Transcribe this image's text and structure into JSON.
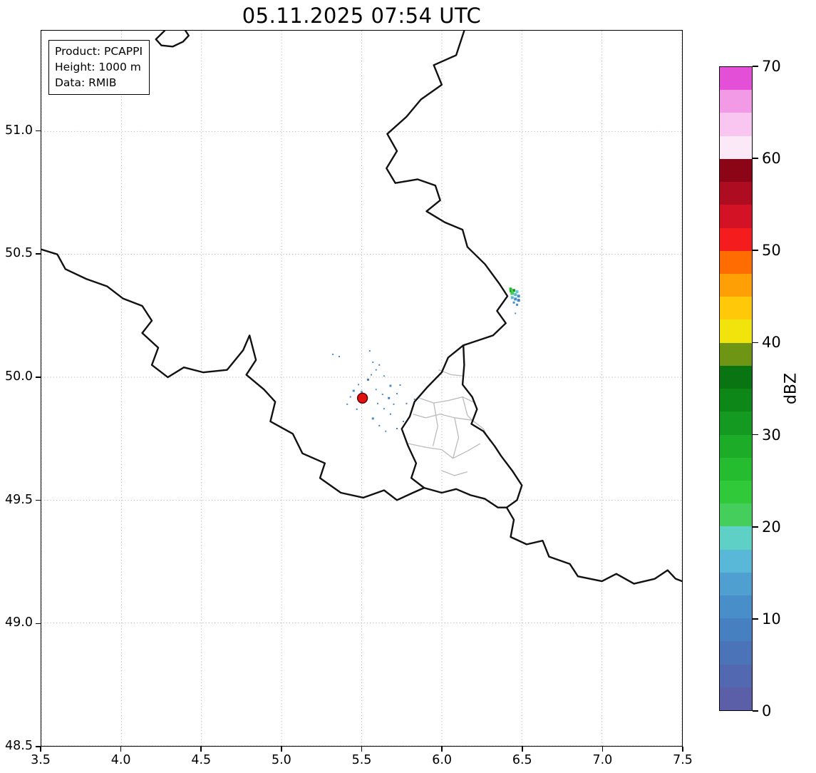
{
  "chart_data": {
    "type": "heatmap",
    "title": "05.11.2025 07:54 UTC",
    "annotation_box": {
      "product": "Product: PCAPPI",
      "height": "Height: 1000 m",
      "source": "Data: RMIB"
    },
    "x_axis": {
      "ticks": [
        "3.5",
        "4.0",
        "4.5",
        "5.0",
        "5.5",
        "6.0",
        "6.5",
        "7.0",
        "7.5"
      ],
      "range": [
        3.5,
        7.5
      ]
    },
    "y_axis": {
      "ticks": [
        "48.5",
        "49.0",
        "49.5",
        "50.0",
        "50.5",
        "51.0"
      ],
      "range": [
        48.5,
        51.41
      ]
    },
    "grid": {
      "style": "dotted",
      "color": "#b5b5b5"
    },
    "colorbar": {
      "label": "dBZ",
      "ticks": [
        "0",
        "10",
        "20",
        "30",
        "40",
        "50",
        "60",
        "70"
      ],
      "range": [
        0,
        70
      ],
      "step": 2.5,
      "colors_bottom_to_top": [
        "#5A5FA8",
        "#5268B0",
        "#4B73B8",
        "#4680C0",
        "#488EC8",
        "#4FA0D0",
        "#59B8D8",
        "#5ED0C6",
        "#46CE5C",
        "#30C93A",
        "#26BC30",
        "#1CAC28",
        "#149A20",
        "#0E8719",
        "#087412",
        "#6E9614",
        "#F0E40C",
        "#FFC90A",
        "#FF9F06",
        "#FF6C02",
        "#F51C1E",
        "#D41226",
        "#AE0C20",
        "#8C0516",
        "#FBE9F8",
        "#F8C6F0",
        "#F29AE6",
        "#E44FD8"
      ]
    },
    "radar_site": {
      "lon": 5.505,
      "lat": 49.915,
      "marker_color": "#E31212",
      "edge_color": "#550000",
      "radius_px": 7
    },
    "echo_points": [
      {
        "lon": 5.45,
        "lat": 49.945,
        "dbz": 10,
        "px": 3
      },
      {
        "lon": 5.43,
        "lat": 49.92,
        "dbz": 8,
        "px": 2
      },
      {
        "lon": 5.41,
        "lat": 49.89,
        "dbz": 12,
        "px": 2
      },
      {
        "lon": 5.48,
        "lat": 49.97,
        "dbz": 10,
        "px": 2
      },
      {
        "lon": 5.54,
        "lat": 49.99,
        "dbz": 8,
        "px": 3
      },
      {
        "lon": 5.56,
        "lat": 50.01,
        "dbz": 10,
        "px": 2
      },
      {
        "lon": 5.59,
        "lat": 50.03,
        "dbz": 12,
        "px": 2
      },
      {
        "lon": 5.61,
        "lat": 50.05,
        "dbz": 8,
        "px": 2
      },
      {
        "lon": 5.64,
        "lat": 50.005,
        "dbz": 10,
        "px": 2
      },
      {
        "lon": 5.68,
        "lat": 49.965,
        "dbz": 12,
        "px": 3
      },
      {
        "lon": 5.59,
        "lat": 49.95,
        "dbz": 14,
        "px": 2
      },
      {
        "lon": 5.63,
        "lat": 49.93,
        "dbz": 10,
        "px": 2
      },
      {
        "lon": 5.67,
        "lat": 49.915,
        "dbz": 8,
        "px": 3
      },
      {
        "lon": 5.6,
        "lat": 49.893,
        "dbz": 10,
        "px": 2
      },
      {
        "lon": 5.64,
        "lat": 49.872,
        "dbz": 12,
        "px": 2
      },
      {
        "lon": 5.68,
        "lat": 49.85,
        "dbz": 8,
        "px": 2
      },
      {
        "lon": 5.7,
        "lat": 49.89,
        "dbz": 10,
        "px": 2
      },
      {
        "lon": 5.72,
        "lat": 49.933,
        "dbz": 12,
        "px": 2
      },
      {
        "lon": 5.74,
        "lat": 49.968,
        "dbz": 8,
        "px": 2
      },
      {
        "lon": 5.57,
        "lat": 49.832,
        "dbz": 10,
        "px": 3
      },
      {
        "lon": 5.61,
        "lat": 49.803,
        "dbz": 8,
        "px": 2
      },
      {
        "lon": 5.65,
        "lat": 49.78,
        "dbz": 10,
        "px": 2
      },
      {
        "lon": 5.36,
        "lat": 50.084,
        "dbz": 8,
        "px": 2
      },
      {
        "lon": 5.32,
        "lat": 50.093,
        "dbz": 10,
        "px": 2
      },
      {
        "lon": 5.57,
        "lat": 50.061,
        "dbz": 12,
        "px": 2
      },
      {
        "lon": 5.72,
        "lat": 49.791,
        "dbz": 8,
        "px": 2
      },
      {
        "lon": 5.76,
        "lat": 49.82,
        "dbz": 10,
        "px": 2
      },
      {
        "lon": 5.78,
        "lat": 49.893,
        "dbz": 8,
        "px": 2
      },
      {
        "lon": 5.83,
        "lat": 49.91,
        "dbz": 10,
        "px": 2
      },
      {
        "lon": 5.55,
        "lat": 50.107,
        "dbz": 8,
        "px": 2
      },
      {
        "lon": 5.5,
        "lat": 49.94,
        "dbz": 14,
        "px": 3
      },
      {
        "lon": 5.52,
        "lat": 49.9,
        "dbz": 12,
        "px": 2
      },
      {
        "lon": 5.47,
        "lat": 49.87,
        "dbz": 8,
        "px": 2
      },
      {
        "lon": 6.43,
        "lat": 50.359,
        "dbz": 26,
        "px": 4
      },
      {
        "lon": 6.45,
        "lat": 50.353,
        "dbz": 30,
        "px": 4
      },
      {
        "lon": 6.47,
        "lat": 50.348,
        "dbz": 18,
        "px": 4
      },
      {
        "lon": 6.44,
        "lat": 50.342,
        "dbz": 22,
        "px": 5
      },
      {
        "lon": 6.46,
        "lat": 50.336,
        "dbz": 16,
        "px": 4
      },
      {
        "lon": 6.48,
        "lat": 50.33,
        "dbz": 12,
        "px": 4
      },
      {
        "lon": 6.44,
        "lat": 50.324,
        "dbz": 15,
        "px": 4
      },
      {
        "lon": 6.46,
        "lat": 50.318,
        "dbz": 10,
        "px": 4
      },
      {
        "lon": 6.48,
        "lat": 50.313,
        "dbz": 8,
        "px": 4
      },
      {
        "lon": 6.45,
        "lat": 50.304,
        "dbz": 12,
        "px": 3
      },
      {
        "lon": 6.47,
        "lat": 50.295,
        "dbz": 10,
        "px": 3
      },
      {
        "lon": 6.43,
        "lat": 50.35,
        "dbz": 28,
        "px": 3
      },
      {
        "lon": 6.46,
        "lat": 50.26,
        "dbz": 10,
        "px": 2
      }
    ],
    "map_borders": {
      "country_color": "#111111",
      "region_color": "#bbbbbb",
      "country": [
        [
          [
            4.27,
            51.41
          ],
          [
            4.215,
            51.375
          ],
          [
            4.25,
            51.35
          ],
          [
            4.32,
            51.345
          ],
          [
            4.385,
            51.365
          ],
          [
            4.42,
            51.39
          ],
          [
            4.4,
            51.41
          ]
        ],
        [
          [
            6.14,
            51.41
          ],
          [
            6.09,
            51.31
          ],
          [
            5.95,
            51.27
          ],
          [
            6.0,
            51.19
          ],
          [
            5.87,
            51.13
          ],
          [
            5.78,
            51.06
          ],
          [
            5.66,
            50.99
          ],
          [
            5.72,
            50.92
          ],
          [
            5.655,
            50.85
          ],
          [
            5.71,
            50.79
          ],
          [
            5.85,
            50.805
          ],
          [
            5.96,
            50.78
          ],
          [
            5.99,
            50.72
          ],
          [
            5.905,
            50.675
          ],
          [
            6.02,
            50.63
          ],
          [
            6.13,
            50.6
          ],
          [
            6.16,
            50.53
          ],
          [
            6.27,
            50.46
          ],
          [
            6.36,
            50.38
          ],
          [
            6.41,
            50.33
          ],
          [
            6.345,
            50.27
          ],
          [
            6.4,
            50.22
          ],
          [
            6.32,
            50.17
          ],
          [
            6.135,
            50.13
          ],
          [
            6.14,
            50.05
          ],
          [
            6.13,
            49.97
          ],
          [
            6.19,
            49.92
          ],
          [
            6.22,
            49.87
          ],
          [
            6.185,
            49.81
          ],
          [
            6.26,
            49.78
          ],
          [
            6.33,
            49.72
          ],
          [
            6.37,
            49.68
          ],
          [
            6.44,
            49.62
          ],
          [
            6.5,
            49.56
          ],
          [
            6.47,
            49.5
          ],
          [
            6.405,
            49.47
          ],
          [
            6.45,
            49.42
          ],
          [
            6.43,
            49.35
          ],
          [
            6.53,
            49.32
          ],
          [
            6.63,
            49.335
          ],
          [
            6.67,
            49.27
          ],
          [
            6.8,
            49.24
          ],
          [
            6.85,
            49.19
          ],
          [
            7.0,
            49.17
          ],
          [
            7.09,
            49.2
          ],
          [
            7.2,
            49.16
          ],
          [
            7.33,
            49.18
          ],
          [
            7.41,
            49.215
          ],
          [
            7.46,
            49.18
          ],
          [
            7.5,
            49.17
          ]
        ],
        [
          [
            3.5,
            50.52
          ],
          [
            3.6,
            50.5
          ],
          [
            3.65,
            50.44
          ],
          [
            3.78,
            50.4
          ],
          [
            3.91,
            50.37
          ],
          [
            4.01,
            50.32
          ],
          [
            4.13,
            50.29
          ],
          [
            4.19,
            50.23
          ],
          [
            4.13,
            50.18
          ],
          [
            4.23,
            50.12
          ],
          [
            4.19,
            50.05
          ],
          [
            4.29,
            50.0
          ],
          [
            4.39,
            50.04
          ],
          [
            4.51,
            50.02
          ],
          [
            4.66,
            50.03
          ],
          [
            4.76,
            50.11
          ],
          [
            4.8,
            50.17
          ],
          [
            4.84,
            50.07
          ],
          [
            4.78,
            50.01
          ],
          [
            4.89,
            49.95
          ],
          [
            4.96,
            49.9
          ],
          [
            4.93,
            49.82
          ],
          [
            5.07,
            49.77
          ],
          [
            5.13,
            49.69
          ],
          [
            5.27,
            49.65
          ],
          [
            5.24,
            49.59
          ],
          [
            5.37,
            49.53
          ],
          [
            5.51,
            49.51
          ],
          [
            5.64,
            49.54
          ],
          [
            5.72,
            49.5
          ],
          [
            5.82,
            49.53
          ],
          [
            5.89,
            49.55
          ]
        ],
        [
          [
            6.135,
            50.13
          ],
          [
            6.04,
            50.08
          ],
          [
            6.0,
            50.02
          ],
          [
            5.91,
            49.96
          ],
          [
            5.83,
            49.9
          ],
          [
            5.8,
            49.84
          ],
          [
            5.75,
            49.79
          ],
          [
            5.79,
            49.72
          ],
          [
            5.84,
            49.65
          ],
          [
            5.81,
            49.59
          ],
          [
            5.89,
            49.55
          ]
        ],
        [
          [
            5.89,
            49.55
          ],
          [
            6.0,
            49.53
          ],
          [
            6.09,
            49.545
          ],
          [
            6.18,
            49.52
          ],
          [
            6.27,
            49.505
          ],
          [
            6.35,
            49.47
          ],
          [
            6.405,
            49.47
          ]
        ]
      ],
      "regions": [
        [
          [
            5.98,
            50.03
          ],
          [
            6.06,
            50.01
          ],
          [
            6.14,
            50.005
          ]
        ],
        [
          [
            5.86,
            49.915
          ],
          [
            5.95,
            49.895
          ],
          [
            6.04,
            49.905
          ],
          [
            6.13,
            49.92
          ],
          [
            6.21,
            49.895
          ]
        ],
        [
          [
            5.82,
            49.85
          ],
          [
            5.9,
            49.835
          ],
          [
            5.99,
            49.85
          ],
          [
            6.08,
            49.835
          ],
          [
            6.19,
            49.825
          ]
        ],
        [
          [
            5.95,
            49.895
          ],
          [
            5.975,
            49.8
          ],
          [
            5.945,
            49.72
          ]
        ],
        [
          [
            6.08,
            49.835
          ],
          [
            6.105,
            49.755
          ],
          [
            6.07,
            49.67
          ]
        ],
        [
          [
            5.79,
            49.73
          ],
          [
            5.9,
            49.715
          ],
          [
            6.0,
            49.705
          ],
          [
            6.07,
            49.67
          ],
          [
            6.16,
            49.7
          ],
          [
            6.24,
            49.73
          ]
        ],
        [
          [
            6.13,
            49.92
          ],
          [
            6.16,
            49.845
          ],
          [
            6.19,
            49.825
          ]
        ],
        [
          [
            6.0,
            49.62
          ],
          [
            6.08,
            49.6
          ],
          [
            6.16,
            49.615
          ]
        ],
        [
          [
            6.19,
            49.825
          ],
          [
            6.26,
            49.79
          ],
          [
            6.3,
            49.74
          ]
        ]
      ]
    }
  }
}
